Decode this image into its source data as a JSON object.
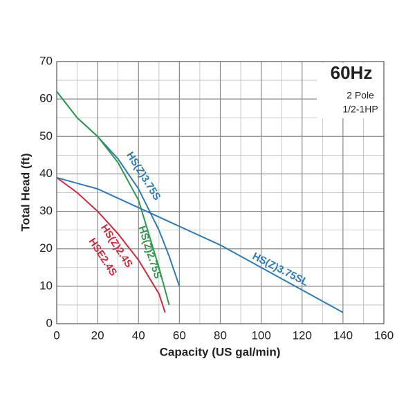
{
  "chart_data": {
    "type": "line",
    "annotation": {
      "title": "60Hz",
      "lines": [
        "2 Pole",
        "1/2-1HP"
      ]
    },
    "xlabel": "Capacity (US gal/min)",
    "ylabel": "Total Head (ft)",
    "xlim": [
      0,
      160
    ],
    "xticks": [
      0,
      20,
      40,
      60,
      80,
      100,
      120,
      140,
      160
    ],
    "ylim": [
      0,
      70
    ],
    "yticks": [
      0,
      10,
      20,
      30,
      40,
      50,
      60,
      70
    ],
    "grid": true,
    "series": [
      {
        "name": "HS(Z)3.75S",
        "color": "#2b7bb9",
        "x": [
          0,
          10,
          20,
          30,
          40,
          50,
          55,
          60
        ],
        "values": [
          62,
          55,
          50,
          44,
          36,
          25,
          18,
          10
        ]
      },
      {
        "name": "HS(Z)2.75S",
        "color": "#2e9a4c",
        "x": [
          0,
          10,
          20,
          30,
          40,
          45,
          50,
          55
        ],
        "values": [
          62,
          55,
          50,
          43,
          33,
          24,
          15,
          5
        ]
      },
      {
        "name": "HS(Z)2.4S",
        "alt_name": "HSE2.4S",
        "color": "#d6283c",
        "x": [
          0,
          10,
          20,
          30,
          40,
          50,
          53
        ],
        "values": [
          39,
          35,
          30,
          24,
          17,
          8,
          3
        ]
      },
      {
        "name": "HS(Z)3.75SL",
        "color": "#2b7bb9",
        "x": [
          0,
          20,
          40,
          60,
          80,
          100,
          120,
          140
        ],
        "values": [
          39,
          36,
          31,
          26,
          21,
          15,
          9,
          3
        ]
      }
    ]
  }
}
